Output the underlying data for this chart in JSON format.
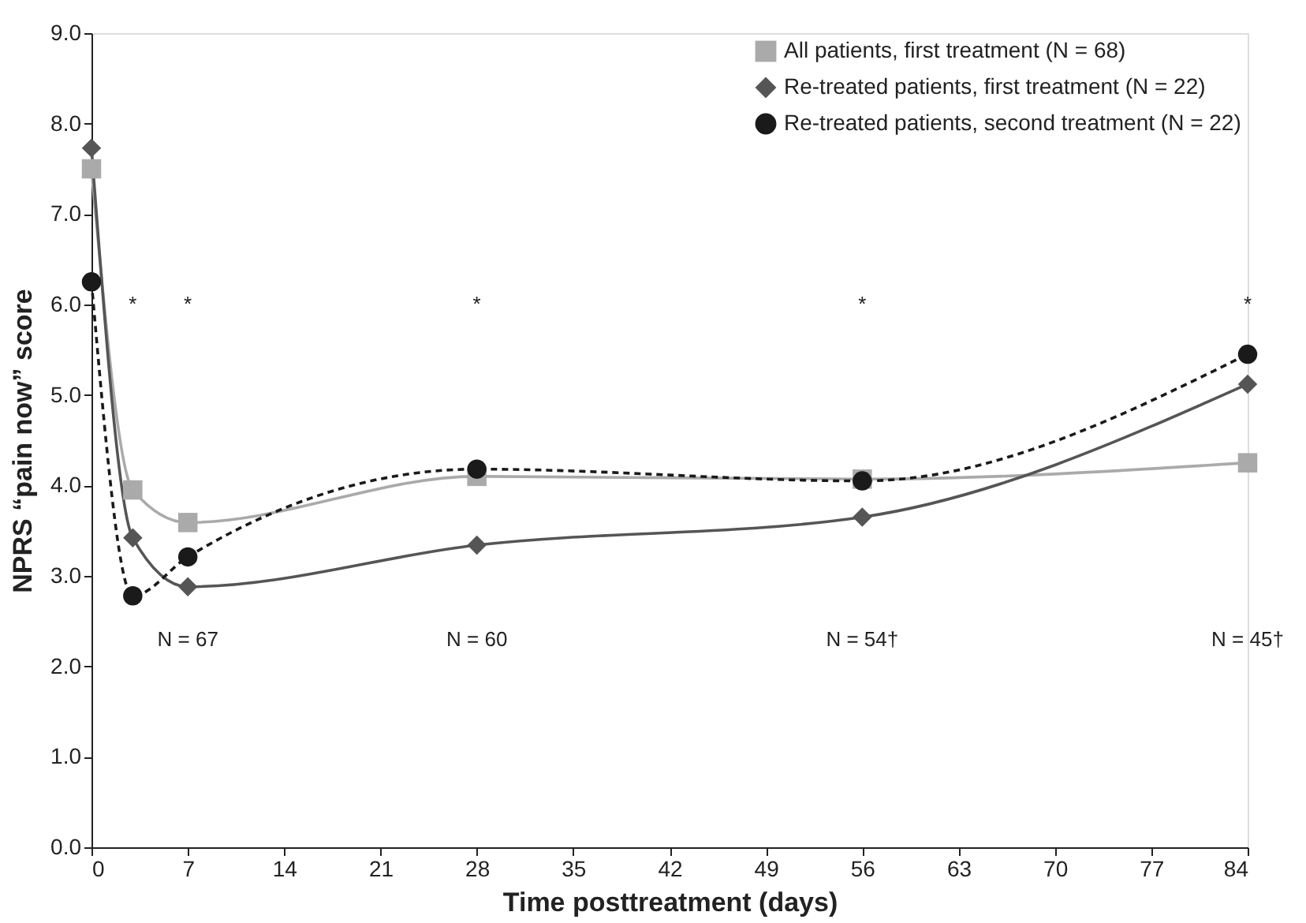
{
  "chart_data": {
    "type": "line",
    "xlabel": "Time posttreatment (days)",
    "ylabel": "NPRS “pain now” score",
    "xlim": [
      0,
      84
    ],
    "xticks": [
      0,
      7,
      14,
      21,
      28,
      35,
      42,
      49,
      56,
      63,
      70,
      77,
      84
    ],
    "ylim": [
      0,
      9
    ],
    "yticks": [
      {
        "value": 0,
        "label": "0.0"
      },
      {
        "value": 1,
        "label": "1.0"
      },
      {
        "value": 2,
        "label": "2.0"
      },
      {
        "value": 3,
        "label": "3.0"
      },
      {
        "value": 4,
        "label": "4.0"
      },
      {
        "value": 5,
        "label": "5.0"
      },
      {
        "value": 6,
        "label": "6.0"
      },
      {
        "value": 7,
        "label": "7.0"
      },
      {
        "value": 8,
        "label": "8.0"
      },
      {
        "value": 9,
        "label": "9.0"
      }
    ],
    "x": [
      0,
      3,
      7,
      28,
      56,
      84
    ],
    "series": [
      {
        "name": "All patients, first treatment (N = 68)",
        "color": "#aaaaaa",
        "marker": "square",
        "line_style": "solid",
        "values": [
          7.5,
          3.95,
          3.59,
          4.1,
          4.07,
          4.25
        ]
      },
      {
        "name": "Re-treated patients, first treatment (N = 22)",
        "color": "#555555",
        "marker": "diamond",
        "line_style": "solid",
        "values": [
          7.73,
          3.42,
          2.88,
          3.34,
          3.65,
          5.12
        ]
      },
      {
        "name": "Re-treated patients, second treatment (N = 22)",
        "color": "#1a1a1a",
        "marker": "circle",
        "line_style": "dashed",
        "values": [
          6.25,
          2.78,
          3.21,
          4.18,
          4.05,
          5.45
        ]
      }
    ],
    "annotations": [
      "*",
      "*",
      "*",
      "*",
      "*",
      "N = 67",
      "N = 60",
      "N = 54†",
      "N = 45†"
    ],
    "legend": "top right",
    "grid": false
  }
}
